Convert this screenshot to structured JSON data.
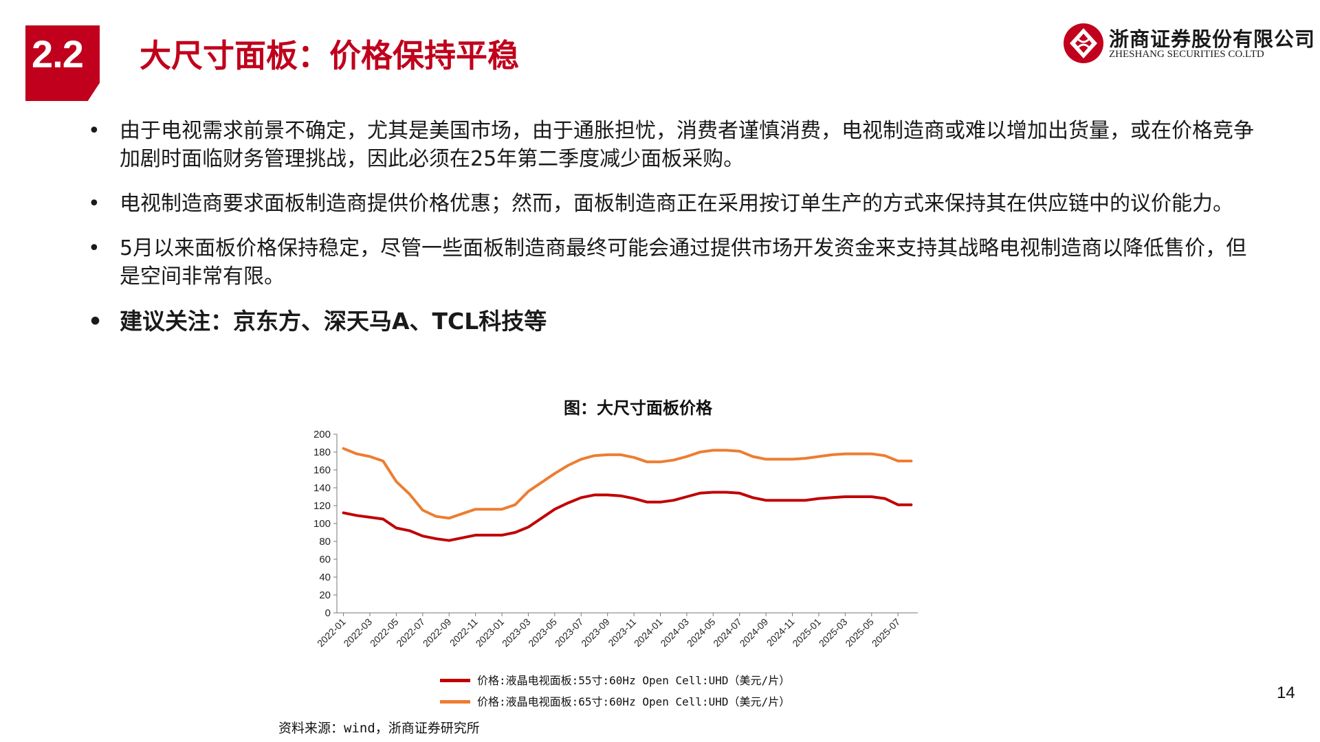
{
  "header": {
    "section_number": "2.2",
    "title": "大尺寸面板：价格保持平稳"
  },
  "logo": {
    "name_cn": "浙商证券股份有限公司",
    "name_en": "ZHESHANG SECURITIES CO.LTD"
  },
  "bullets": [
    {
      "marker": "•",
      "text": "由于电视需求前景不确定，尤其是美国市场，由于通胀担忧，消费者谨慎消费，电视制造商或难以增加出货量，或在价格竞争加剧时面临财务管理挑战，因此必须在25年第二季度减少面板采购。"
    },
    {
      "marker": "•",
      "text": "电视制造商要求面板制造商提供价格优惠；然而，面板制造商正在采用按订单生产的方式来保持其在供应链中的议价能力。"
    },
    {
      "marker": "•",
      "text": "5月以来面板价格保持稳定，尽管一些面板制造商最终可能会通过提供市场开发资金来支持其战略电视制造商以降低售价，但是空间非常有限。"
    },
    {
      "marker": "•",
      "text": "建议关注：京东方、深天马A、TCL科技等"
    }
  ],
  "chart_data": {
    "type": "line",
    "title": "图：大尺寸面板价格",
    "x": [
      "2022-01",
      "2022-02",
      "2022-03",
      "2022-04",
      "2022-05",
      "2022-06",
      "2022-07",
      "2022-08",
      "2022-09",
      "2022-10",
      "2022-11",
      "2022-12",
      "2023-01",
      "2023-02",
      "2023-03",
      "2023-04",
      "2023-05",
      "2023-06",
      "2023-07",
      "2023-08",
      "2023-09",
      "2023-10",
      "2023-11",
      "2023-12",
      "2024-01",
      "2024-02",
      "2024-03",
      "2024-04",
      "2024-05",
      "2024-06",
      "2024-07",
      "2024-08",
      "2024-09",
      "2024-10",
      "2024-11",
      "2024-12",
      "2025-01",
      "2025-02",
      "2025-03",
      "2025-04",
      "2025-05",
      "2025-06",
      "2025-07",
      "2025-08"
    ],
    "x_tick_labels": [
      "2022-01",
      "2022-03",
      "2022-05",
      "2022-07",
      "2022-09",
      "2022-11",
      "2023-01",
      "2023-03",
      "2023-05",
      "2023-07",
      "2023-09",
      "2023-11",
      "2024-01",
      "2024-03",
      "2024-05",
      "2024-07",
      "2024-09",
      "2024-11",
      "2025-01",
      "2025-03",
      "2025-05",
      "2025-07"
    ],
    "ylim": [
      0,
      200
    ],
    "yticks": [
      0,
      20,
      40,
      60,
      80,
      100,
      120,
      140,
      160,
      180,
      200
    ],
    "series": [
      {
        "name": "价格:液晶电视面板:55寸:60Hz Open Cell:UHD（美元/片）",
        "color": "#c00000",
        "values": [
          112,
          109,
          107,
          105,
          95,
          92,
          86,
          83,
          81,
          84,
          87,
          87,
          87,
          90,
          96,
          106,
          116,
          123,
          129,
          132,
          132,
          131,
          128,
          124,
          124,
          126,
          130,
          134,
          135,
          135,
          134,
          129,
          126,
          126,
          126,
          126,
          128,
          129,
          130,
          130,
          130,
          128,
          121,
          121
        ]
      },
      {
        "name": "价格:液晶电视面板:65寸:60Hz Open Cell:UHD（美元/片）",
        "color": "#ed7d31",
        "values": [
          184,
          178,
          175,
          170,
          147,
          133,
          115,
          108,
          106,
          111,
          116,
          116,
          116,
          121,
          136,
          146,
          156,
          165,
          172,
          176,
          177,
          177,
          174,
          169,
          169,
          171,
          175,
          180,
          182,
          182,
          181,
          175,
          172,
          172,
          172,
          173,
          175,
          177,
          178,
          178,
          178,
          176,
          170,
          170
        ]
      }
    ],
    "grid": false,
    "legend_position": "bottom"
  },
  "source": "资料来源：wind，浙商证券研究所",
  "page_number": "14",
  "colors": {
    "accent": "#c0001c",
    "series_55": "#c00000",
    "series_65": "#ed7d31"
  }
}
